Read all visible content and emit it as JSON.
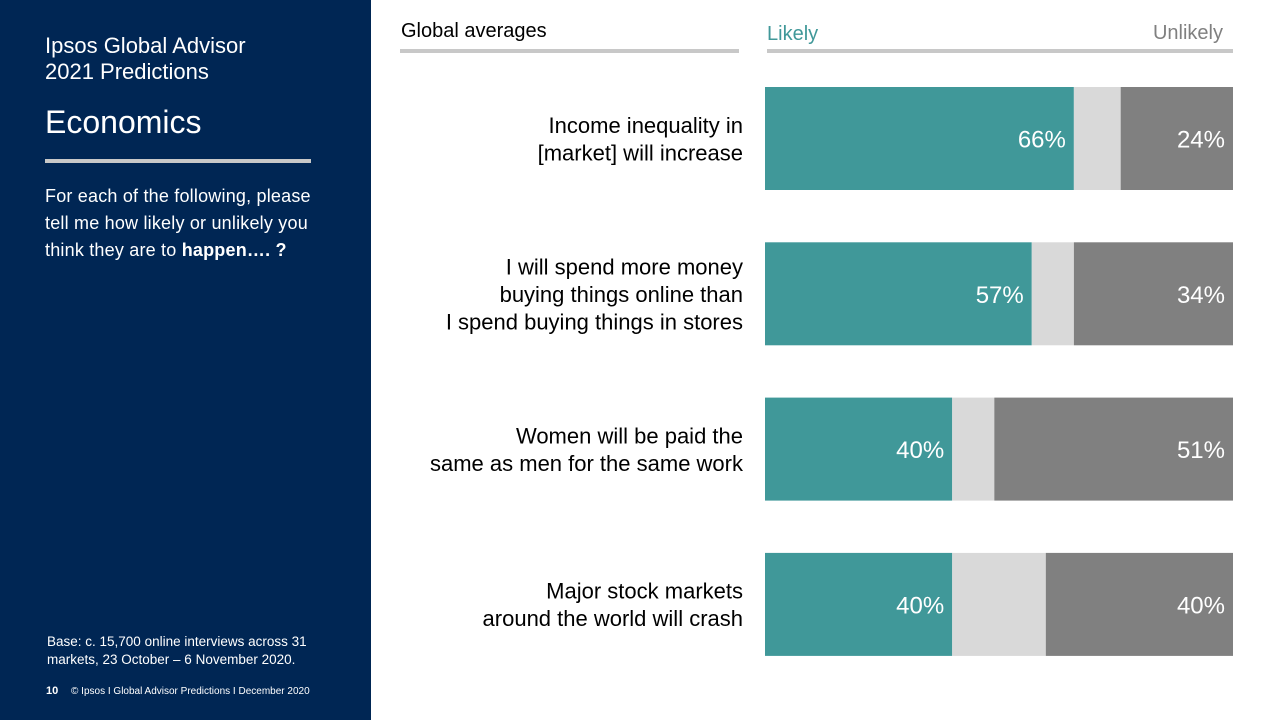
{
  "sidebar": {
    "title_line1": "Ipsos Global Advisor",
    "title_line2": "2021 Predictions",
    "section": "Economics",
    "question": "For each of the following, please tell me how likely or unlikely you think they are to",
    "question_bold": "happen…. ?",
    "base": "Base: c. 15,700 online interviews across 31 markets,  23 October – 6 November 2020.",
    "page_number": "10",
    "footer": "© Ipsos I Global Advisor Predictions I December 2020"
  },
  "header": {
    "averages": "Global averages",
    "likely": "Likely",
    "unlikely": "Unlikely"
  },
  "colors": {
    "likely": "#409899",
    "neutral": "#d9d9d9",
    "unlikely": "#808080",
    "sidebar": "#002654"
  },
  "chart_data": {
    "type": "bar",
    "orientation": "horizontal-stacked-100",
    "categories": [
      [
        "Income inequality in",
        "[market] will increase"
      ],
      [
        "I will spend more money",
        "buying things online than",
        "I spend buying things in stores"
      ],
      [
        "Women will be paid the",
        "same as men for the same work"
      ],
      [
        "Major stock markets",
        "around the world will crash"
      ]
    ],
    "series": [
      {
        "name": "Likely",
        "values": [
          66,
          57,
          40,
          40
        ],
        "labels": [
          "66%",
          "57%",
          "40%",
          "40%"
        ]
      },
      {
        "name": "",
        "values": [
          10,
          9,
          9,
          20
        ],
        "labels": [
          "",
          "",
          "",
          ""
        ]
      },
      {
        "name": "Unlikely",
        "values": [
          24,
          34,
          51,
          40
        ],
        "labels": [
          "24%",
          "34%",
          "51%",
          "40%"
        ]
      }
    ],
    "xlim": [
      0,
      100
    ],
    "legend": "top"
  }
}
